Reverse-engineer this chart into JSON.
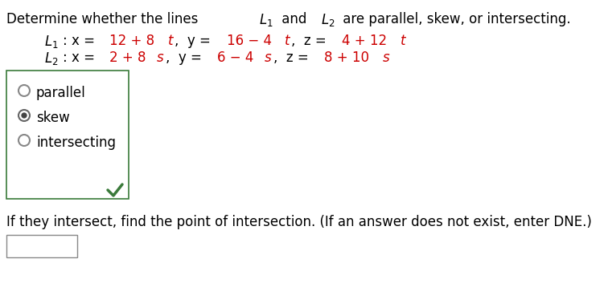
{
  "bg_color": "#ffffff",
  "text_color": "#000000",
  "red_color": "#cc0000",
  "green_color": "#3a7a3a",
  "box_edge_color": "#3a7a3a",
  "ans_box_color": "#888888",
  "title_plain": "Determine whether the lines ",
  "title_end": " are parallel, skew, or intersecting.",
  "L1_label": "L₁",
  "L2_label": "L₂",
  "line1_black1": "L₁: x = ",
  "line1_red1": "12 + 8t",
  "line1_black2": ",  y = ",
  "line1_red2": "16 − 4t",
  "line1_black3": ",  z = ",
  "line1_red3": "4 + 12t",
  "line2_black1": "L₂: x = ",
  "line2_red1": "2 + 8s",
  "line2_black2": ",  y = ",
  "line2_red2": "6 − 4s",
  "line2_black3": ",  z = ",
  "line2_red3": "8 + 10s",
  "options": [
    "parallel",
    "skew",
    "intersecting"
  ],
  "selected_option": 1,
  "bottom_text": "If they intersect, find the point of intersection. (If an answer does not exist, enter DNE.)",
  "font_size": 12,
  "font_size_eq": 12
}
